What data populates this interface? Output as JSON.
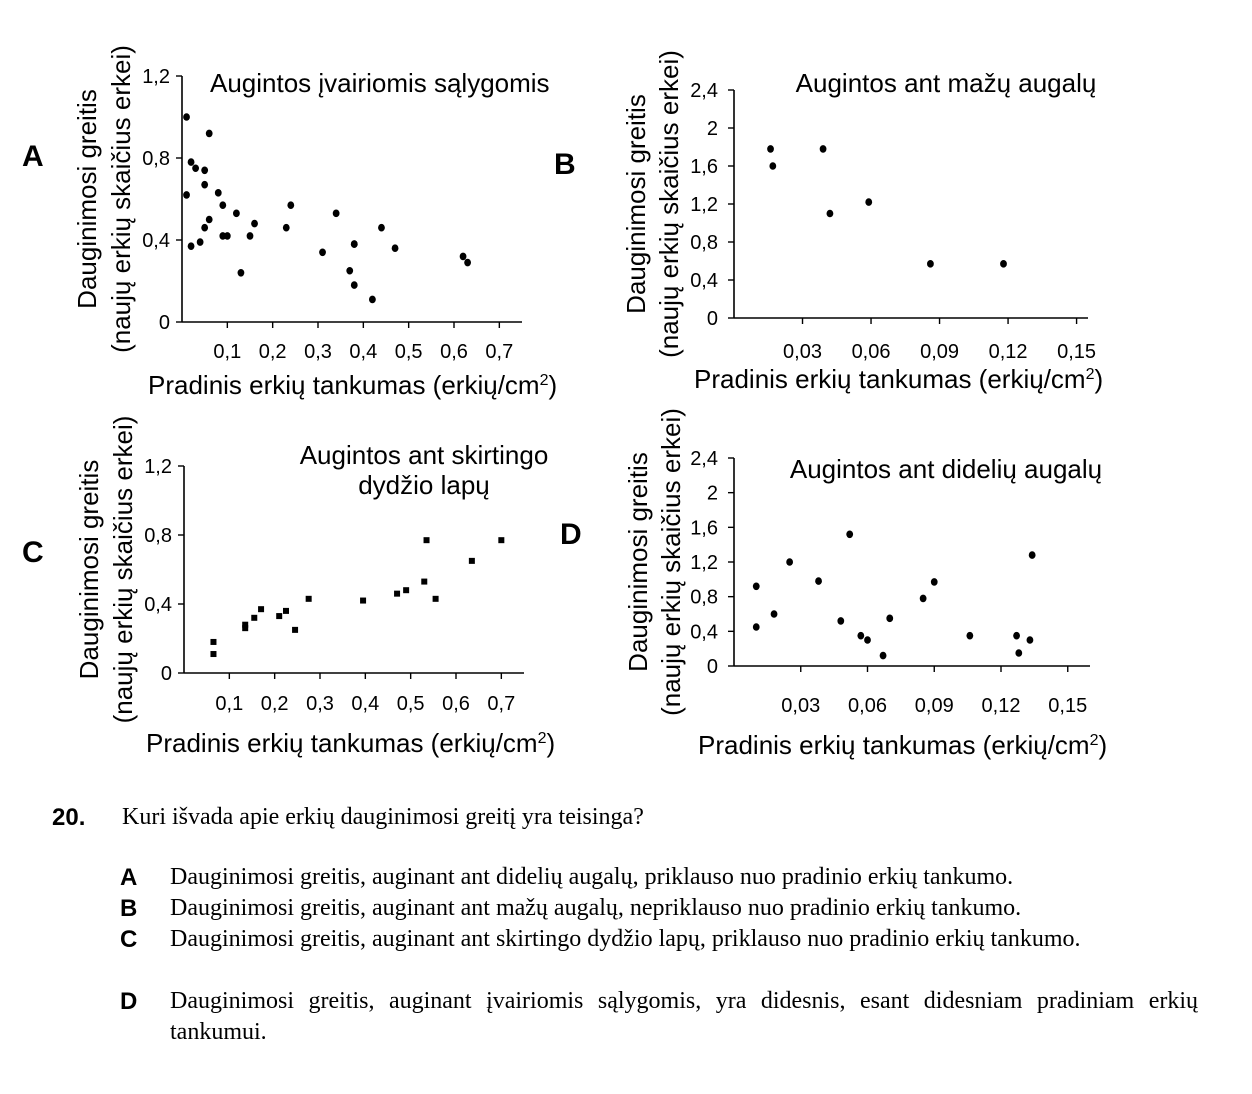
{
  "chart_data": [
    {
      "panel": "A",
      "type": "scatter",
      "title": "Augintos įvairiomis sąlygomis",
      "xlabel": "Pradinis erkių tankumas (erkių/cm²)",
      "ylabel": [
        "Dauginimosi greitis",
        "(naujų erkių skaičius erkei)"
      ],
      "xlim": [
        0,
        0.75
      ],
      "ylim": [
        0,
        1.2
      ],
      "xticks": [
        0.1,
        0.2,
        0.3,
        0.4,
        0.5,
        0.6,
        0.7
      ],
      "xtick_labels": [
        "0,1",
        "0,2",
        "0,3",
        "0,4",
        "0,5",
        "0,6",
        "0,7"
      ],
      "yticks": [
        0,
        0.4,
        0.8,
        1.2
      ],
      "ytick_labels": [
        "0",
        "0,4",
        "0,8",
        "1,2"
      ],
      "marker": "circle",
      "x": [
        0.01,
        0.01,
        0.02,
        0.02,
        0.03,
        0.04,
        0.05,
        0.05,
        0.05,
        0.06,
        0.06,
        0.08,
        0.09,
        0.09,
        0.1,
        0.12,
        0.13,
        0.15,
        0.16,
        0.23,
        0.24,
        0.31,
        0.34,
        0.37,
        0.38,
        0.38,
        0.38,
        0.42,
        0.44,
        0.47,
        0.62,
        0.63
      ],
      "y": [
        1.0,
        0.62,
        0.78,
        0.37,
        0.75,
        0.39,
        0.74,
        0.67,
        0.46,
        0.92,
        0.5,
        0.63,
        0.57,
        0.42,
        0.42,
        0.53,
        0.24,
        0.42,
        0.48,
        0.46,
        0.57,
        0.34,
        0.53,
        0.25,
        0.18,
        0.38,
        0.38,
        0.11,
        0.46,
        0.36,
        0.32,
        0.29
      ]
    },
    {
      "panel": "B",
      "type": "scatter",
      "title": "Augintos ant mažų augalų",
      "xlabel": "Pradinis erkių tankumas (erkių/cm²)",
      "ylabel": [
        "Dauginimosi greitis",
        "(naujų erkių skaičius erkei)"
      ],
      "xlim": [
        0,
        0.155
      ],
      "ylim": [
        0,
        2.4
      ],
      "xticks": [
        0.03,
        0.06,
        0.09,
        0.12,
        0.15
      ],
      "xtick_labels": [
        "0,03",
        "0,06",
        "0,09",
        "0,12",
        "0,15"
      ],
      "yticks": [
        0,
        0.4,
        0.8,
        1.2,
        1.6,
        2,
        2.4
      ],
      "ytick_labels": [
        "0",
        "0,4",
        "0,8",
        "1,2",
        "1,6",
        "2",
        "2,4"
      ],
      "marker": "circle",
      "x": [
        0.016,
        0.017,
        0.039,
        0.042,
        0.059,
        0.086,
        0.118
      ],
      "y": [
        1.78,
        1.6,
        1.78,
        1.1,
        1.22,
        0.57,
        0.57
      ]
    },
    {
      "panel": "C",
      "type": "scatter",
      "title": "Augintos ant skirtingo dydžio lapų",
      "xlabel": "Pradinis erkių tankumas (erkių/cm²)",
      "ylabel": [
        "Dauginimosi greitis",
        "(naujų erkių skaičius erkei)"
      ],
      "xlim": [
        0,
        0.75
      ],
      "ylim": [
        0,
        1.2
      ],
      "xticks": [
        0.1,
        0.2,
        0.3,
        0.4,
        0.5,
        0.6,
        0.7
      ],
      "xtick_labels": [
        "0,1",
        "0,2",
        "0,3",
        "0,4",
        "0,5",
        "0,6",
        "0,7"
      ],
      "yticks": [
        0,
        0.4,
        0.8,
        1.2
      ],
      "ytick_labels": [
        "0",
        "0,4",
        "0,8",
        "1,2"
      ],
      "marker": "square",
      "x": [
        0.065,
        0.065,
        0.135,
        0.135,
        0.155,
        0.17,
        0.21,
        0.225,
        0.245,
        0.275,
        0.395,
        0.47,
        0.49,
        0.53,
        0.535,
        0.555,
        0.635,
        0.7
      ],
      "y": [
        0.18,
        0.11,
        0.28,
        0.26,
        0.32,
        0.37,
        0.33,
        0.36,
        0.25,
        0.43,
        0.42,
        0.46,
        0.48,
        0.53,
        0.77,
        0.43,
        0.65,
        0.77
      ]
    },
    {
      "panel": "D",
      "type": "scatter",
      "title": "Augintos ant didelių augalų",
      "xlabel": "Pradinis erkių tankumas (erkių/cm²)",
      "ylabel": [
        "Dauginimosi greitis",
        "(naujų erkių skaičius erkei)"
      ],
      "xlim": [
        0,
        0.16
      ],
      "ylim": [
        0,
        2.4
      ],
      "xticks": [
        0.03,
        0.06,
        0.09,
        0.12,
        0.15
      ],
      "xtick_labels": [
        "0,03",
        "0,06",
        "0,09",
        "0,12",
        "0,15"
      ],
      "yticks": [
        0,
        0.4,
        0.8,
        1.2,
        1.6,
        2,
        2.4
      ],
      "ytick_labels": [
        "0",
        "0,4",
        "0,8",
        "1,2",
        "1,6",
        "2",
        "2,4"
      ],
      "marker": "circle",
      "x": [
        0.01,
        0.01,
        0.018,
        0.025,
        0.038,
        0.048,
        0.052,
        0.057,
        0.06,
        0.067,
        0.07,
        0.085,
        0.09,
        0.106,
        0.127,
        0.128,
        0.133,
        0.134
      ],
      "y": [
        0.92,
        0.45,
        0.6,
        1.2,
        0.98,
        0.52,
        1.52,
        0.35,
        0.3,
        0.12,
        0.55,
        0.78,
        0.97,
        0.35,
        0.35,
        0.15,
        0.3,
        1.28
      ]
    }
  ],
  "question": {
    "number": "20.",
    "text": "Kuri išvada apie erkių dauginimosi greitį yra teisinga?",
    "options": [
      {
        "letter": "A",
        "text": "Dauginimosi greitis, auginant ant didelių augalų, priklauso nuo pradinio erkių tankumo."
      },
      {
        "letter": "B",
        "text": "Dauginimosi greitis, auginant ant mažų augalų, nepriklauso nuo pradinio erkių tankumo."
      },
      {
        "letter": "C",
        "text": "Dauginimosi greitis, auginant ant skirtingo dydžio lapų, priklauso nuo pradinio erkių tankumo."
      },
      {
        "letter": "D",
        "text": "Dauginimosi greitis, auginant įvairiomis sąlygomis, yra didesnis, esant didesniam pradiniam erkių tankumui."
      }
    ]
  }
}
